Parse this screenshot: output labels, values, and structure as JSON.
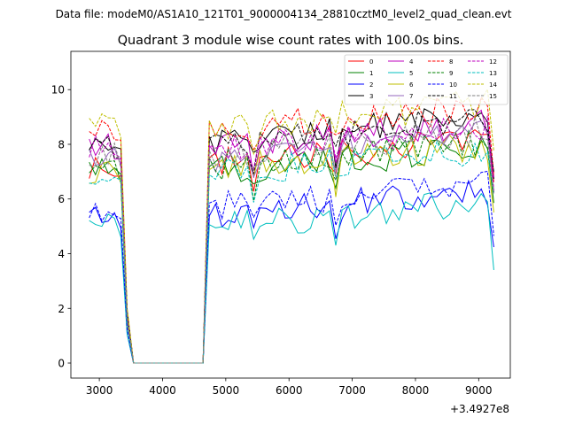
{
  "figure": {
    "suptitle": "Data file: modeM0/AS1A10_121T01_9000004134_28810cztM0_level2_quad_clean.evt",
    "x_offset_label": "+3.4927e8"
  },
  "chart_data": {
    "type": "line",
    "title": "Quadrant 3 module wise count rates with 100.0s bins.",
    "xlabel": "",
    "ylabel": "",
    "xlim": [
      2550,
      9500
    ],
    "ylim": [
      -0.55,
      11.4
    ],
    "xticks": [
      3000,
      4000,
      5000,
      6000,
      7000,
      8000,
      9000
    ],
    "xtick_labels": [
      "3000",
      "4000",
      "5000",
      "6000",
      "7000",
      "8000",
      "9000"
    ],
    "yticks": [
      0,
      2,
      4,
      6,
      8,
      10
    ],
    "ytick_labels": [
      "0",
      "2",
      "4",
      "6",
      "8",
      "10"
    ],
    "grid": false,
    "legend": {
      "position": "top-right",
      "columns": 4
    },
    "x": [
      2840,
      2940,
      3040,
      3140,
      3240,
      3340,
      3440,
      3540,
      3640,
      3740,
      3840,
      3940,
      4040,
      4140,
      4240,
      4340,
      4440,
      4540,
      4640,
      4740,
      4840,
      4940,
      5040,
      5140,
      5240,
      5340,
      5440,
      5540,
      5640,
      5740,
      5840,
      5940,
      6040,
      6140,
      6240,
      6340,
      6440,
      6540,
      6640,
      6740,
      6840,
      6940,
      7040,
      7140,
      7240,
      7340,
      7440,
      7540,
      7640,
      7740,
      7840,
      7940,
      8040,
      8140,
      8240,
      8340,
      8440,
      8540,
      8640,
      8740,
      8840,
      8940,
      9040,
      9140,
      9240
    ],
    "series": [
      {
        "name": "0",
        "color": "#ff0000",
        "dash": false,
        "base": 7.3
      },
      {
        "name": "1",
        "color": "#008000",
        "dash": false,
        "base": 7.0
      },
      {
        "name": "2",
        "color": "#0000ff",
        "dash": false,
        "base": 5.4
      },
      {
        "name": "3",
        "color": "#000000",
        "dash": false,
        "base": 8.1
      },
      {
        "name": "4",
        "color": "#bf00bf",
        "dash": false,
        "base": 7.9
      },
      {
        "name": "5",
        "color": "#00bfbf",
        "dash": false,
        "base": 5.0
      },
      {
        "name": "6",
        "color": "#bfbf00",
        "dash": false,
        "base": 7.1
      },
      {
        "name": "7",
        "color": "#9467bd",
        "dash": false,
        "base": 7.5
      },
      {
        "name": "8",
        "color": "#ff0000",
        "dash": true,
        "base": 8.5
      },
      {
        "name": "9",
        "color": "#008000",
        "dash": true,
        "base": 7.2
      },
      {
        "name": "10",
        "color": "#0000ff",
        "dash": true,
        "base": 5.7
      },
      {
        "name": "11",
        "color": "#000000",
        "dash": true,
        "base": 8.0
      },
      {
        "name": "12",
        "color": "#bf00bf",
        "dash": true,
        "base": 7.8
      },
      {
        "name": "13",
        "color": "#00bfbf",
        "dash": true,
        "base": 6.9
      },
      {
        "name": "14",
        "color": "#bfbf00",
        "dash": true,
        "base": 8.6
      },
      {
        "name": "15",
        "color": "#808080",
        "dash": true,
        "base": 7.6
      }
    ]
  }
}
